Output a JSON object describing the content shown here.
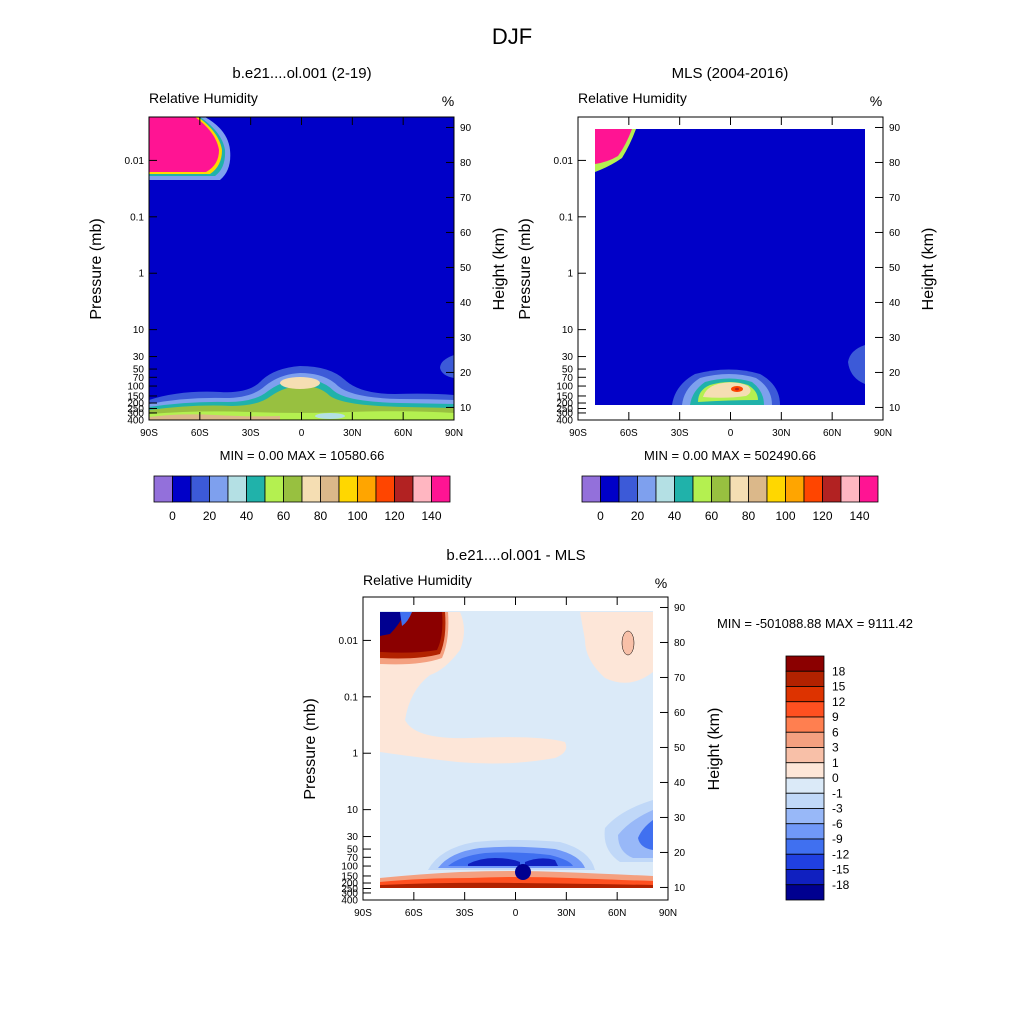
{
  "figure": {
    "title": "DJF"
  },
  "chart_data": [
    {
      "type": "heatmap",
      "title": "b.e21....ol.001 (2-19)",
      "subtitle": "Relative Humidity",
      "units": "%",
      "xlabel": "",
      "ylabel": "Pressure (mb)",
      "y2label": "Height (km)",
      "x_ticks": [
        "90S",
        "60S",
        "30S",
        "0",
        "30N",
        "60N",
        "90N"
      ],
      "y_ticks": [
        "0.01",
        "0.1",
        "1",
        "10",
        "30",
        "50",
        "70",
        "100",
        "150",
        "200",
        "250",
        "300",
        "400"
      ],
      "y2_ticks": [
        "90",
        "80",
        "70",
        "60",
        "50",
        "40",
        "30",
        "20",
        "10"
      ],
      "y_scale": "log",
      "stats": "MIN =   0.00  MAX = 10580.66",
      "colorbar": {
        "labels": [
          "0",
          "20",
          "40",
          "60",
          "80",
          "100",
          "120",
          "140"
        ],
        "colors": [
          "#9370db",
          "#0000c8",
          "#3c5ad8",
          "#7ea0ee",
          "#b4e0e4",
          "#20b2aa",
          "#b4f050",
          "#98c040",
          "#f5deb3",
          "#dbb88a",
          "#ffd700",
          "#ffa500",
          "#ff4500",
          "#b22222",
          "#ffb6c1",
          "#ff1493"
        ]
      }
    },
    {
      "type": "heatmap",
      "title": "MLS (2004-2016)",
      "subtitle": "Relative Humidity",
      "units": "%",
      "xlabel": "",
      "ylabel": "Pressure (mb)",
      "y2label": "Height (km)",
      "x_ticks": [
        "90S",
        "60S",
        "30S",
        "0",
        "30N",
        "60N",
        "90N"
      ],
      "y_ticks": [
        "0.01",
        "0.1",
        "1",
        "10",
        "30",
        "50",
        "70",
        "100",
        "150",
        "200",
        "250",
        "300",
        "400"
      ],
      "y2_ticks": [
        "90",
        "80",
        "70",
        "60",
        "50",
        "40",
        "30",
        "20",
        "10"
      ],
      "y_scale": "log",
      "stats": "MIN =   0.00  MAX = 502490.66",
      "colorbar": {
        "labels": [
          "0",
          "20",
          "40",
          "60",
          "80",
          "100",
          "120",
          "140"
        ],
        "colors": [
          "#9370db",
          "#0000c8",
          "#3c5ad8",
          "#7ea0ee",
          "#b4e0e4",
          "#20b2aa",
          "#b4f050",
          "#98c040",
          "#f5deb3",
          "#dbb88a",
          "#ffd700",
          "#ffa500",
          "#ff4500",
          "#b22222",
          "#ffb6c1",
          "#ff1493"
        ]
      }
    },
    {
      "type": "heatmap",
      "title": "b.e21....ol.001 - MLS",
      "subtitle": "Relative Humidity",
      "units": "%",
      "xlabel": "",
      "ylabel": "Pressure (mb)",
      "y2label": "Height (km)",
      "x_ticks": [
        "90S",
        "60S",
        "30S",
        "0",
        "30N",
        "60N",
        "90N"
      ],
      "y_ticks": [
        "0.01",
        "0.1",
        "1",
        "10",
        "30",
        "50",
        "70",
        "100",
        "150",
        "200",
        "250",
        "300",
        "400"
      ],
      "y2_ticks": [
        "90",
        "80",
        "70",
        "60",
        "50",
        "40",
        "30",
        "20",
        "10"
      ],
      "y_scale": "log",
      "stats": "MIN = -501088.88  MAX = 9111.42",
      "colorbar": {
        "labels": [
          "18",
          "15",
          "12",
          "9",
          "6",
          "3",
          "1",
          "0",
          "-1",
          "-3",
          "-6",
          "-9",
          "-12",
          "-15",
          "-18"
        ],
        "colors": [
          "#8b0000",
          "#b22200",
          "#dd3300",
          "#ff5020",
          "#ff7f50",
          "#f4a080",
          "#f8c0a8",
          "#fde6d8",
          "#dbeaf8",
          "#c0d8f8",
          "#98b8f8",
          "#7098f8",
          "#4070f0",
          "#2040e0",
          "#1020c0",
          "#000090"
        ]
      }
    }
  ]
}
